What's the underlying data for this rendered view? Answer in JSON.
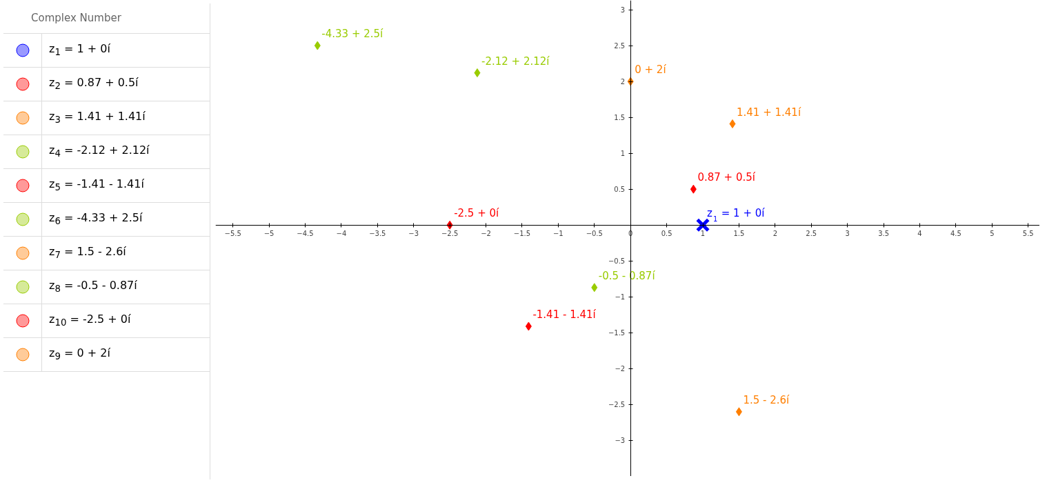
{
  "chart_data": {
    "type": "scatter",
    "title": "Complex Number",
    "marker": "diamond",
    "grid": false,
    "xlim": [
      -5.74,
      5.66
    ],
    "ylim": [
      -3.5,
      3.13
    ],
    "xticks": [
      -5.5,
      -5,
      -4.5,
      -4,
      -3.5,
      -3,
      -2.5,
      -2,
      -1.5,
      -1,
      -0.5,
      0,
      0.5,
      1,
      1.5,
      2,
      2.5,
      3,
      3.5,
      4,
      4.5,
      5,
      5.5
    ],
    "yticks": [
      -3,
      -2.5,
      -2,
      -1.5,
      -1,
      -0.5,
      0.5,
      1,
      1.5,
      2,
      2.5,
      3
    ],
    "series": [
      {
        "name": "z$_{1}$ = 1 + 0í",
        "color": "#0000ff",
        "marker": "cross",
        "x": [
          1
        ],
        "values": [
          0
        ]
      },
      {
        "name": "0.87 + 0.5í",
        "color": "#ff0000",
        "x": [
          0.87
        ],
        "values": [
          0.5
        ]
      },
      {
        "name": "1.41 + 1.41í",
        "color": "#ff7f00",
        "x": [
          1.41
        ],
        "values": [
          1.41
        ]
      },
      {
        "name": "-2.12 + 2.12í",
        "color": "#99cc00",
        "x": [
          -2.12
        ],
        "values": [
          2.12
        ]
      },
      {
        "name": "-1.41 - 1.41í",
        "color": "#ff0000",
        "x": [
          -1.41
        ],
        "values": [
          -1.41
        ]
      },
      {
        "name": "-4.33 + 2.5í",
        "color": "#99cc00",
        "x": [
          -4.33
        ],
        "values": [
          2.5
        ]
      },
      {
        "name": "1.5 - 2.6í",
        "color": "#ff7f00",
        "x": [
          1.5
        ],
        "values": [
          -2.6
        ]
      },
      {
        "name": "-0.5 - 0.87í",
        "color": "#99cc00",
        "x": [
          -0.5
        ],
        "values": [
          -0.87
        ]
      },
      {
        "name": "-2.5 + 0í",
        "color": "#ff0000",
        "x": [
          -2.5
        ],
        "values": [
          0
        ]
      },
      {
        "name": "0 + 2í",
        "color": "#ff7f00",
        "x": [
          0
        ],
        "values": [
          2
        ]
      }
    ],
    "annotations": [
      "z$_{1}$ = 1 + 0í",
      "z$_{2}$ = 0.87 + 0.5í",
      "z$_{3}$ = 1.41 + 1.41í",
      "z$_{4}$ = -2.12 + 2.12í",
      "z$_{5}$ = -1.41 - 1.41í",
      "z$_{6}$ = -4.33 + 2.5í",
      "z$_{7}$ = 1.5 - 2.6í",
      "z$_{8}$ = -0.5 - 0.87í",
      "z$_{10}$ = -2.5 + 0í",
      "z$_{9}$ = 0 + 2í"
    ]
  }
}
